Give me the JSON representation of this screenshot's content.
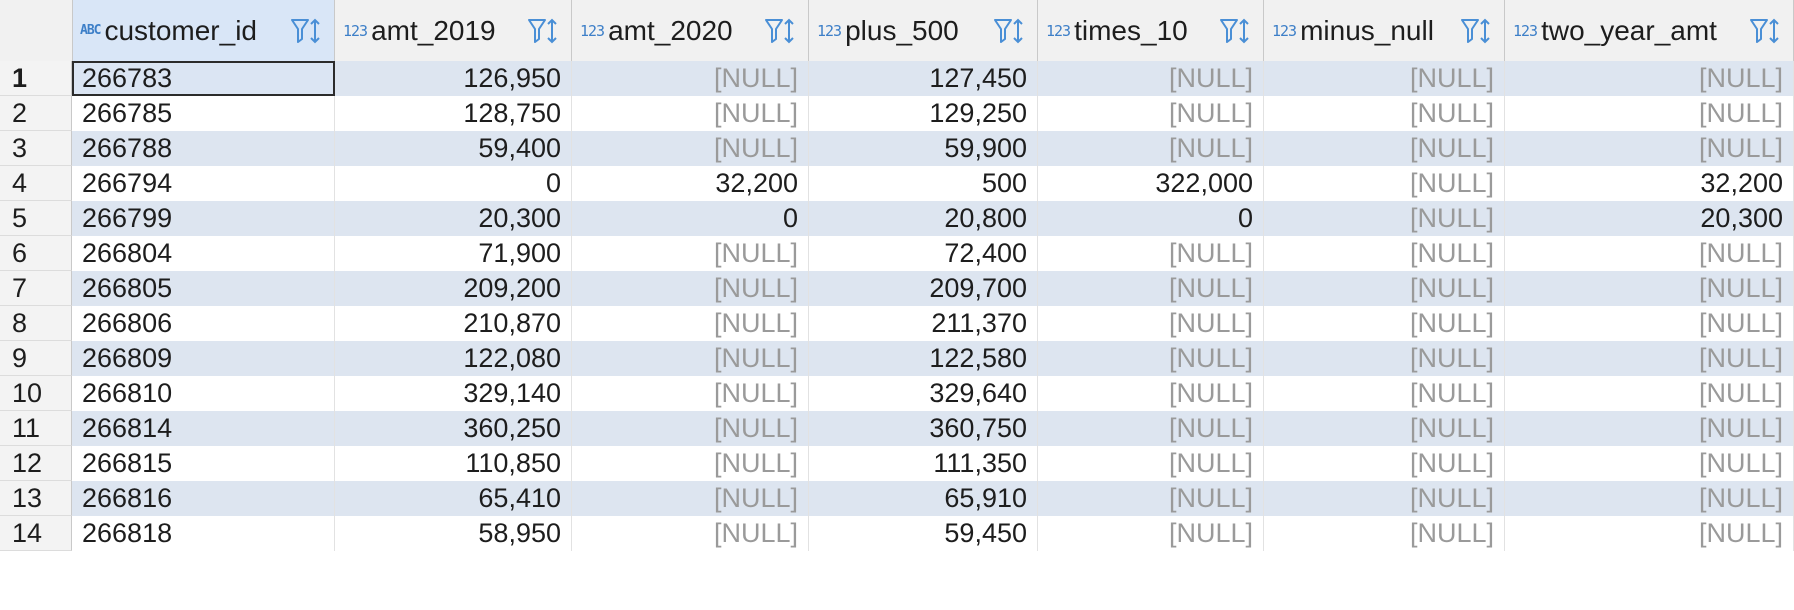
{
  "grid": {
    "columns": [
      {
        "type_icon": "ABC",
        "name": "customer_id"
      },
      {
        "type_icon": "123",
        "name": "amt_2019"
      },
      {
        "type_icon": "123",
        "name": "amt_2020"
      },
      {
        "type_icon": "123",
        "name": "plus_500"
      },
      {
        "type_icon": "123",
        "name": "times_10"
      },
      {
        "type_icon": "123",
        "name": "minus_null"
      },
      {
        "type_icon": "123",
        "name": "two_year_amt"
      }
    ],
    "rows": [
      {
        "num": "1",
        "cells": [
          "266783",
          "126,950",
          "[NULL]",
          "127,450",
          "[NULL]",
          "[NULL]",
          "[NULL]"
        ]
      },
      {
        "num": "2",
        "cells": [
          "266785",
          "128,750",
          "[NULL]",
          "129,250",
          "[NULL]",
          "[NULL]",
          "[NULL]"
        ]
      },
      {
        "num": "3",
        "cells": [
          "266788",
          "59,400",
          "[NULL]",
          "59,900",
          "[NULL]",
          "[NULL]",
          "[NULL]"
        ]
      },
      {
        "num": "4",
        "cells": [
          "266794",
          "0",
          "32,200",
          "500",
          "322,000",
          "[NULL]",
          "32,200"
        ]
      },
      {
        "num": "5",
        "cells": [
          "266799",
          "20,300",
          "0",
          "20,800",
          "0",
          "[NULL]",
          "20,300"
        ]
      },
      {
        "num": "6",
        "cells": [
          "266804",
          "71,900",
          "[NULL]",
          "72,400",
          "[NULL]",
          "[NULL]",
          "[NULL]"
        ]
      },
      {
        "num": "7",
        "cells": [
          "266805",
          "209,200",
          "[NULL]",
          "209,700",
          "[NULL]",
          "[NULL]",
          "[NULL]"
        ]
      },
      {
        "num": "8",
        "cells": [
          "266806",
          "210,870",
          "[NULL]",
          "211,370",
          "[NULL]",
          "[NULL]",
          "[NULL]"
        ]
      },
      {
        "num": "9",
        "cells": [
          "266809",
          "122,080",
          "[NULL]",
          "122,580",
          "[NULL]",
          "[NULL]",
          "[NULL]"
        ]
      },
      {
        "num": "10",
        "cells": [
          "266810",
          "329,140",
          "[NULL]",
          "329,640",
          "[NULL]",
          "[NULL]",
          "[NULL]"
        ]
      },
      {
        "num": "11",
        "cells": [
          "266814",
          "360,250",
          "[NULL]",
          "360,750",
          "[NULL]",
          "[NULL]",
          "[NULL]"
        ]
      },
      {
        "num": "12",
        "cells": [
          "266815",
          "110,850",
          "[NULL]",
          "111,350",
          "[NULL]",
          "[NULL]",
          "[NULL]"
        ]
      },
      {
        "num": "13",
        "cells": [
          "266816",
          "65,410",
          "[NULL]",
          "65,910",
          "[NULL]",
          "[NULL]",
          "[NULL]"
        ]
      },
      {
        "num": "14",
        "cells": [
          "266818",
          "58,950",
          "[NULL]",
          "59,450",
          "[NULL]",
          "[NULL]",
          "[NULL]"
        ]
      }
    ],
    "selected_row": 0,
    "selected_col": 0,
    "colors": {
      "alt_row": "#dde5f0",
      "null_text": "#9a9a9a",
      "type_icon": "#3d7fc8"
    }
  }
}
